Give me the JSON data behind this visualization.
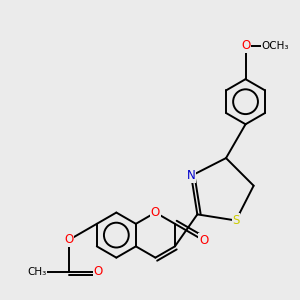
{
  "bg_color": "#ebebeb",
  "bond_color": "#000000",
  "bond_width": 1.4,
  "atom_colors": {
    "O": "#ff0000",
    "N": "#0000cc",
    "S": "#cccc00",
    "C": "#000000"
  },
  "font_size": 8.5,
  "fig_size": [
    3.0,
    3.0
  ],
  "dpi": 100
}
